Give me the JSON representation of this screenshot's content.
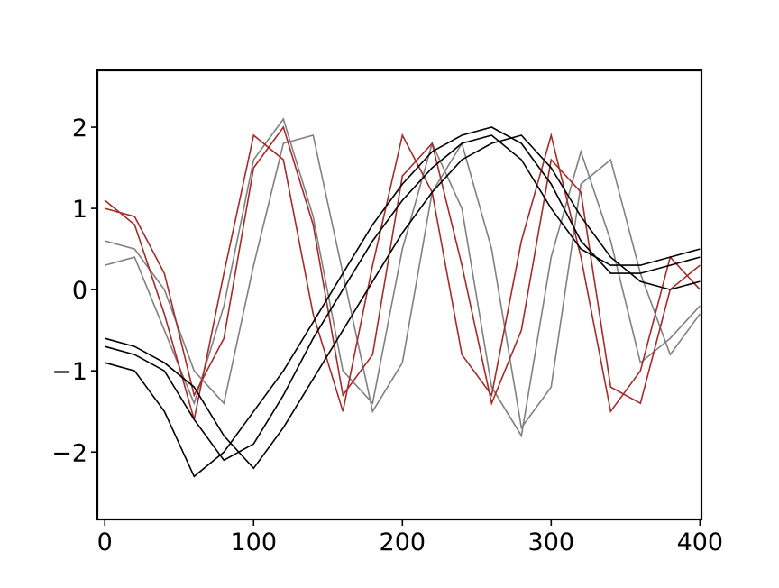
{
  "chart_data": {
    "type": "line",
    "x": [
      0,
      20,
      40,
      60,
      80,
      100,
      120,
      140,
      160,
      180,
      200,
      220,
      240,
      260,
      280,
      300,
      320,
      340,
      360,
      380,
      400
    ],
    "series": [
      {
        "color": "#808080",
        "values": [
          0.6,
          0.5,
          0.0,
          -1.0,
          -1.4,
          0.3,
          1.8,
          1.9,
          0.2,
          -1.5,
          -0.9,
          1.2,
          1.8,
          0.5,
          -1.7,
          -1.2,
          1.3,
          1.6,
          0.2,
          -0.8,
          -0.3
        ]
      },
      {
        "color": "#808080",
        "values": [
          0.3,
          0.4,
          -0.5,
          -1.4,
          -0.2,
          1.6,
          2.1,
          0.9,
          -1.0,
          -1.4,
          0.5,
          1.8,
          1.0,
          -1.2,
          -1.8,
          0.4,
          1.7,
          0.6,
          -0.9,
          -0.6,
          -0.2
        ]
      },
      {
        "color": "#a52a2a",
        "values": [
          1.0,
          0.9,
          0.2,
          -1.3,
          -0.6,
          1.5,
          2.0,
          0.8,
          -1.3,
          -0.8,
          1.4,
          1.8,
          0.3,
          -1.4,
          -0.5,
          1.6,
          1.2,
          -1.2,
          -1.4,
          0.0,
          0.3
        ]
      },
      {
        "color": "#a52a2a",
        "values": [
          1.1,
          0.8,
          -0.3,
          -1.6,
          0.2,
          1.9,
          1.6,
          -0.3,
          -1.5,
          0.3,
          1.9,
          1.2,
          -0.8,
          -1.3,
          0.6,
          1.9,
          0.4,
          -1.5,
          -1.0,
          0.4,
          0.0
        ]
      },
      {
        "color": "#000000",
        "values": [
          -0.7,
          -0.8,
          -1.0,
          -1.6,
          -2.1,
          -1.9,
          -1.3,
          -0.6,
          0.0,
          0.6,
          1.1,
          1.5,
          1.8,
          1.9,
          1.6,
          1.0,
          0.5,
          0.3,
          0.3,
          0.4,
          0.5
        ]
      },
      {
        "color": "#000000",
        "values": [
          -0.9,
          -1.0,
          -1.5,
          -2.3,
          -2.0,
          -1.5,
          -1.0,
          -0.4,
          0.2,
          0.8,
          1.3,
          1.7,
          1.9,
          2.0,
          1.8,
          1.3,
          0.6,
          0.2,
          0.2,
          0.3,
          0.4
        ]
      },
      {
        "color": "#000000",
        "values": [
          -0.6,
          -0.7,
          -0.9,
          -1.2,
          -1.8,
          -2.2,
          -1.7,
          -1.1,
          -0.5,
          0.1,
          0.7,
          1.2,
          1.6,
          1.8,
          1.9,
          1.5,
          0.9,
          0.4,
          0.1,
          0.0,
          0.1
        ]
      }
    ],
    "xlim": [
      -5,
      401
    ],
    "ylim": [
      -2.83,
      2.7
    ],
    "xticks": [
      0,
      100,
      200,
      300,
      400
    ],
    "yticks": [
      {
        "value": -2,
        "label": "−2"
      },
      {
        "value": -1,
        "label": "−1"
      },
      0,
      1,
      2
    ]
  }
}
